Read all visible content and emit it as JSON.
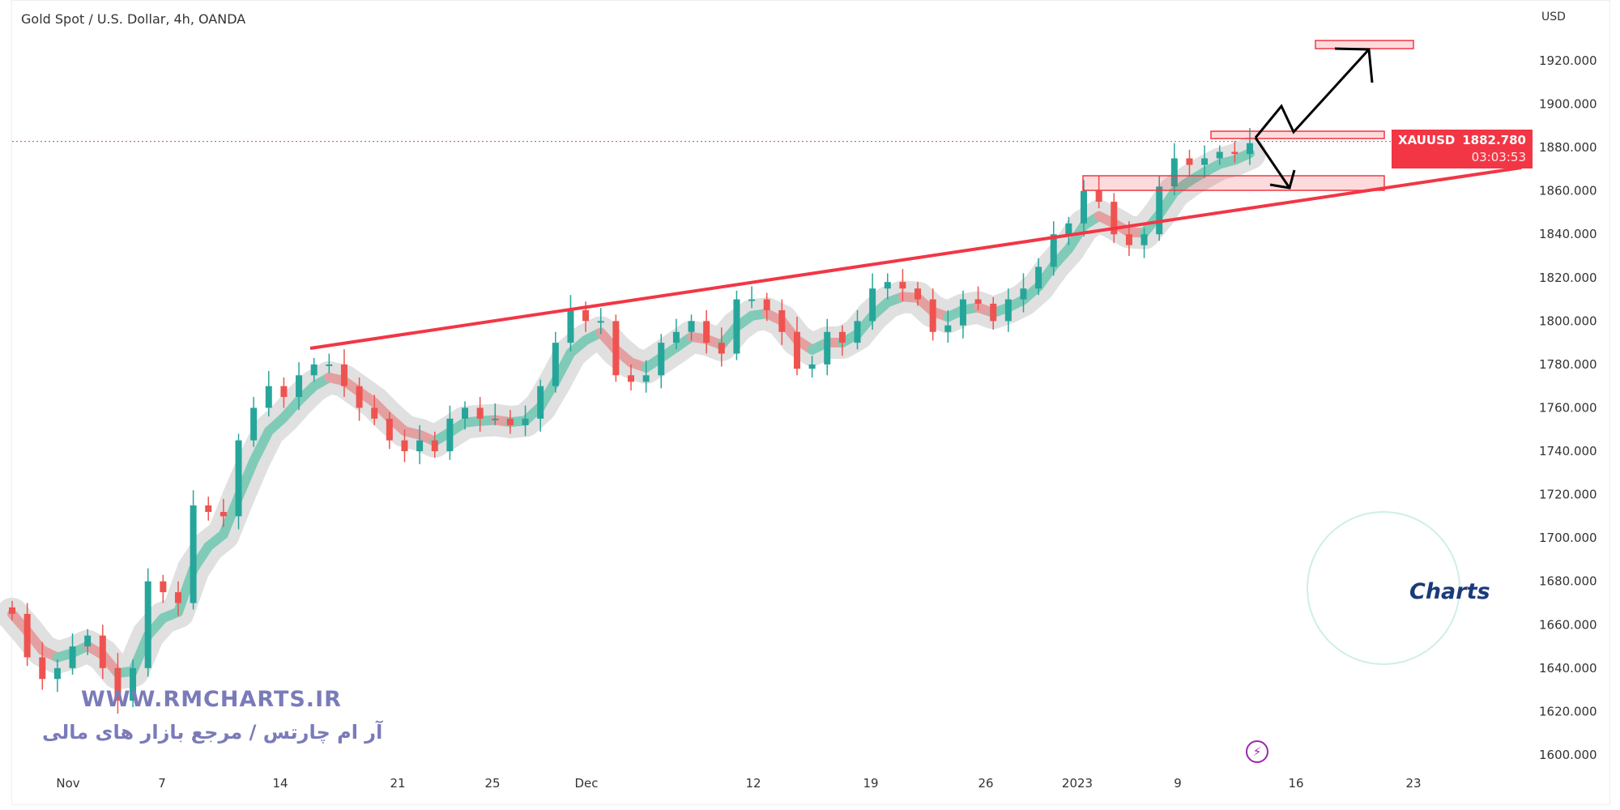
{
  "header": {
    "title": "Gold Spot / U.S. Dollar, 4h, OANDA",
    "currency": "USD"
  },
  "badge": {
    "symbol": "XAUUSD",
    "price": "1882.780",
    "countdown": "03:03:53",
    "color": "#f23645"
  },
  "watermark": {
    "url": "WWW.RMCHARTS.IR",
    "tagline": "آر ام چارتس / مرجع بازار های مالی",
    "logo_text": "Charts"
  },
  "icons": {
    "alert": "lightning-icon"
  },
  "chart_data": {
    "type": "candlestick",
    "title": "Gold Spot / U.S. Dollar, 4h, OANDA",
    "ylim": [
      1590,
      1935
    ],
    "y_ticks": [
      "1600.000",
      "1620.000",
      "1640.000",
      "1660.000",
      "1680.000",
      "1700.000",
      "1720.000",
      "1740.000",
      "1760.000",
      "1780.000",
      "1800.000",
      "1820.000",
      "1840.000",
      "1860.000",
      "1880.000",
      "1900.000",
      "1920.000"
    ],
    "x_ticks": [
      "Nov",
      "7",
      "14",
      "21",
      "25",
      "Dec",
      "12",
      "19",
      "26",
      "2023",
      "9",
      "16",
      "23"
    ],
    "closes": [
      1665,
      1645,
      1635,
      1640,
      1650,
      1655,
      1640,
      1625,
      1640,
      1680,
      1675,
      1670,
      1715,
      1712,
      1710,
      1745,
      1760,
      1770,
      1765,
      1775,
      1780,
      1780,
      1770,
      1760,
      1755,
      1745,
      1740,
      1745,
      1740,
      1755,
      1760,
      1755,
      1755,
      1752,
      1755,
      1770,
      1790,
      1805,
      1800,
      1800,
      1775,
      1772,
      1775,
      1790,
      1795,
      1800,
      1790,
      1785,
      1810,
      1810,
      1805,
      1795,
      1778,
      1780,
      1795,
      1790,
      1800,
      1815,
      1818,
      1815,
      1810,
      1795,
      1798,
      1810,
      1808,
      1800,
      1810,
      1815,
      1825,
      1840,
      1845,
      1860,
      1855,
      1840,
      1835,
      1840,
      1862,
      1875,
      1872,
      1875,
      1878,
      1877,
      1882
    ],
    "last_price": 1882.78,
    "colors": {
      "up": "#26a69a",
      "down": "#ef5350",
      "trendline": "#f23645"
    },
    "annotations": {
      "trendline": "ascending support",
      "zones": [
        [
          1925,
          1929
        ],
        [
          1881,
          1884
        ],
        [
          1860,
          1866
        ]
      ]
    }
  }
}
